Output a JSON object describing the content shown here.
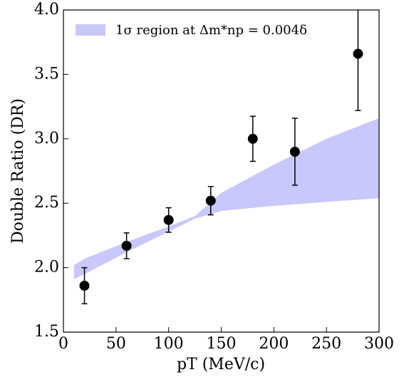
{
  "chart_data": {
    "type": "errorbar",
    "xlabel": "pT (MeV/c)",
    "ylabel": "Double Ratio (DR)",
    "xlim": [
      0,
      300
    ],
    "ylim": [
      1.5,
      4.0
    ],
    "xticks": [
      0,
      50,
      100,
      150,
      200,
      250,
      300
    ],
    "yticks": [
      1.5,
      {
        "value": 2,
        "label": "2.0"
      },
      2.5,
      {
        "value": 3,
        "label": "3.0"
      },
      3.5,
      {
        "value": 4,
        "label": "4.0"
      }
    ],
    "legend_position": "upper left",
    "band": {
      "name": "1σ region at Δm*np = 0.004δ",
      "color": "#c8c8fa",
      "x": [
        10,
        20,
        60,
        100,
        125,
        150,
        200,
        250,
        300
      ],
      "upper": [
        2.02,
        2.07,
        2.2,
        2.32,
        2.4,
        2.58,
        2.8,
        3.0,
        3.16
      ],
      "lower": [
        1.91,
        1.95,
        2.12,
        2.28,
        2.38,
        2.44,
        2.48,
        2.51,
        2.54
      ]
    },
    "series": [
      {
        "color": "#000000",
        "x": [
          20,
          60,
          100,
          140,
          180,
          220,
          280
        ],
        "values": [
          1.86,
          2.17,
          2.37,
          2.52,
          3.0,
          2.9,
          3.66
        ],
        "errors": [
          0.14,
          0.1,
          0.095,
          0.11,
          0.175,
          0.26,
          0.44
        ]
      }
    ]
  }
}
